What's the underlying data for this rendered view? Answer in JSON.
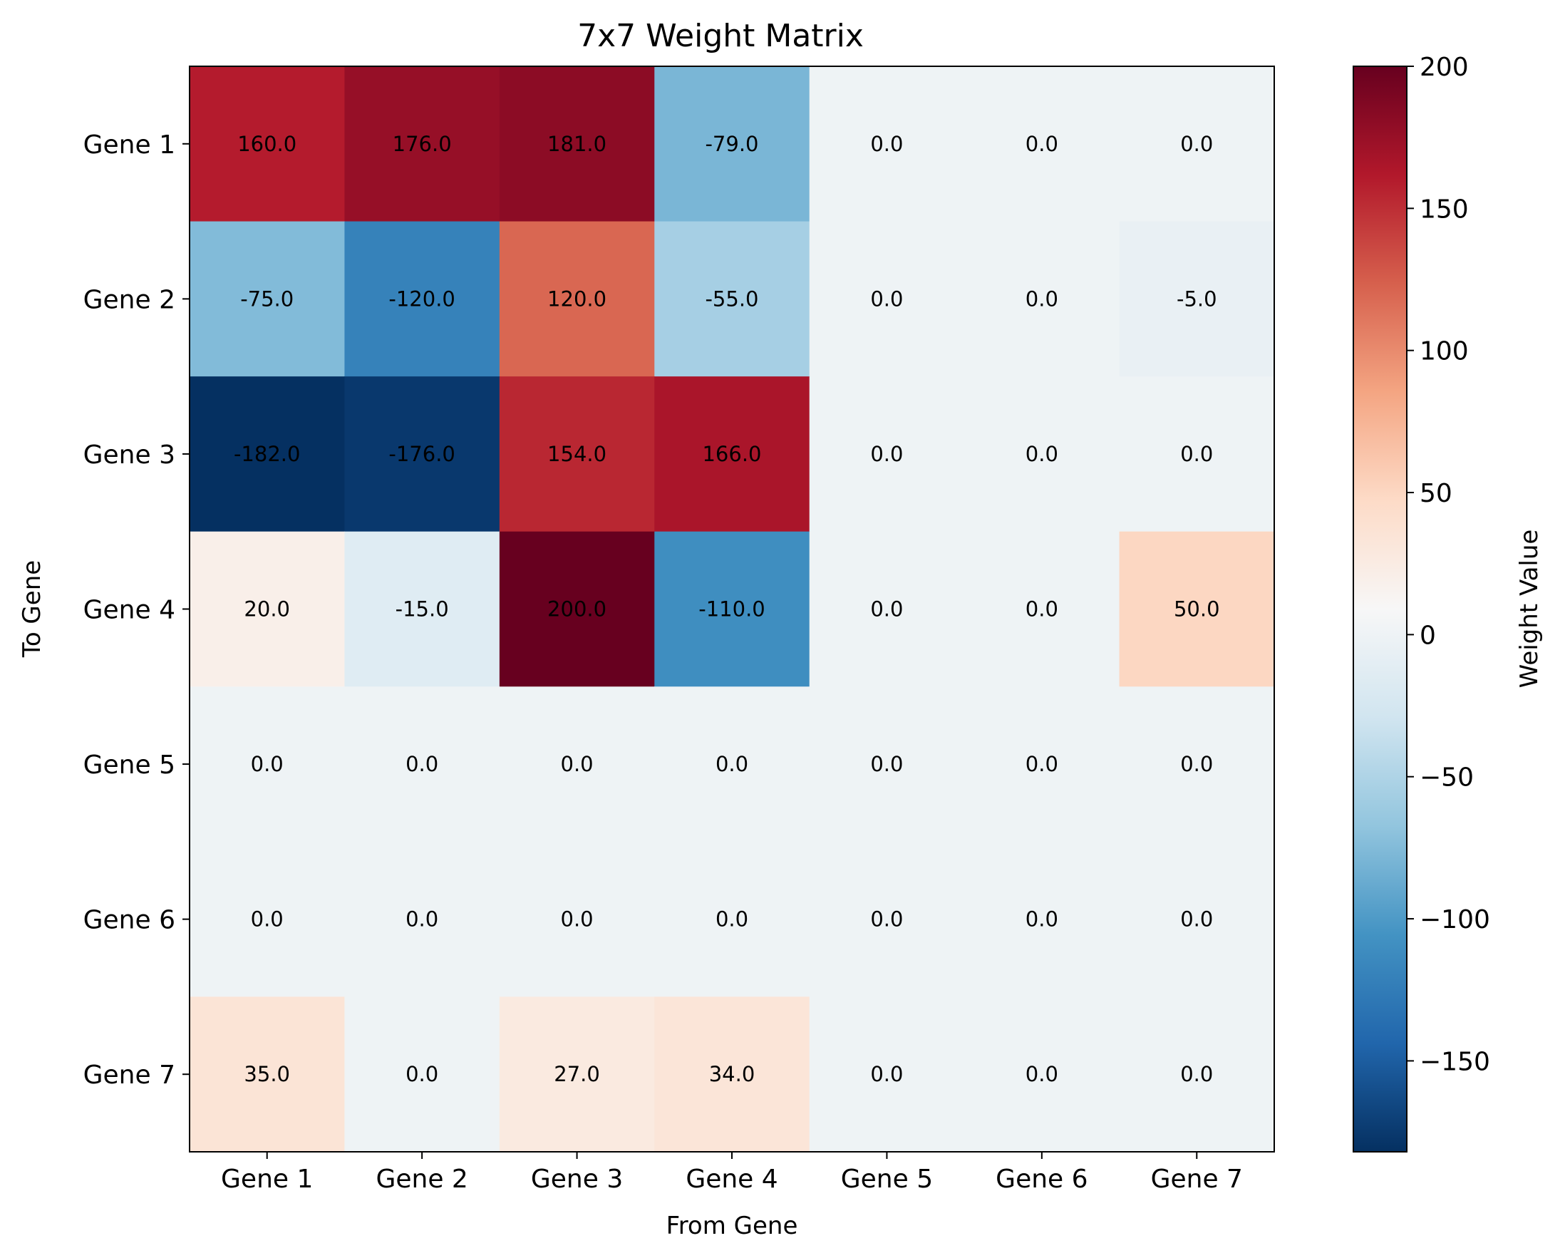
{
  "chart_data": {
    "type": "heatmap",
    "title": "7x7 Weight Matrix",
    "xlabel": "From Gene",
    "ylabel": "To Gene",
    "x_categories": [
      "Gene 1",
      "Gene 2",
      "Gene 3",
      "Gene 4",
      "Gene 5",
      "Gene 6",
      "Gene 7"
    ],
    "y_categories": [
      "Gene 1",
      "Gene 2",
      "Gene 3",
      "Gene 4",
      "Gene 5",
      "Gene 6",
      "Gene 7"
    ],
    "values": [
      [
        160,
        176,
        181,
        -79,
        0,
        0,
        0
      ],
      [
        -75,
        -120,
        120,
        -55,
        0,
        0,
        -5
      ],
      [
        -182,
        -176,
        154,
        166,
        0,
        0,
        0
      ],
      [
        20,
        -15,
        200,
        -110,
        0,
        0,
        50
      ],
      [
        0,
        0,
        0,
        0,
        0,
        0,
        0
      ],
      [
        0,
        0,
        0,
        0,
        0,
        0,
        0
      ],
      [
        35,
        0,
        27,
        34,
        0,
        0,
        0
      ]
    ],
    "value_format": "0.0",
    "colormap": "RdBu_r",
    "colorbar": {
      "label": "Weight Value",
      "range": [
        -182,
        200
      ],
      "ticks": [
        200,
        150,
        100,
        50,
        0,
        -50,
        -100,
        -150
      ],
      "tick_labels": [
        "200",
        "150",
        "100",
        "50",
        "0",
        "−50",
        "−100",
        "−150"
      ]
    }
  }
}
